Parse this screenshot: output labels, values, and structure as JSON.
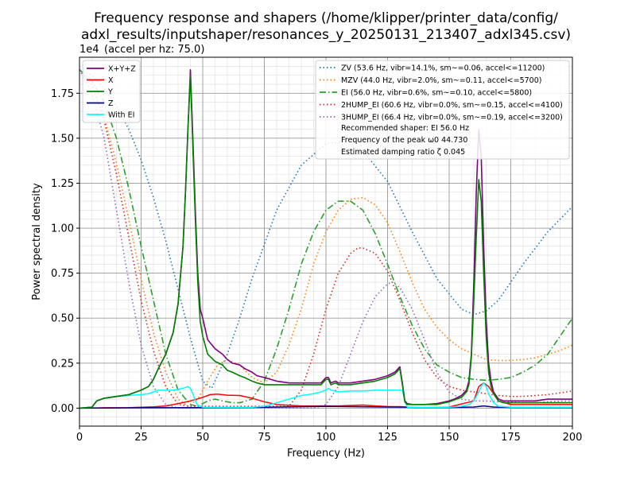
{
  "chart_data": {
    "type": "line",
    "title_lines": [
      "Frequency response and shapers (/home/klipper/printer_data/config/",
      "adxl_results/inputshaper/resonances_y_20250131_213407_adxl345.csv)"
    ],
    "xlabel": "Frequency (Hz)",
    "ylabel": "Power spectral density",
    "y_offset_label": "1e4",
    "annotation": "(accel per hz: 75.0)",
    "xlim": [
      0,
      200
    ],
    "ylim": [
      -0.1,
      1.95
    ],
    "x_ticks": [
      0,
      25,
      50,
      75,
      100,
      125,
      150,
      175,
      200
    ],
    "x_tick_labels": [
      "0",
      "25",
      "50",
      "75",
      "100",
      "125",
      "150",
      "175",
      "200"
    ],
    "y_ticks": [
      0,
      0.25,
      0.5,
      0.75,
      1.0,
      1.25,
      1.5,
      1.75
    ],
    "y_tick_labels": [
      "0.00",
      "0.25",
      "0.50",
      "0.75",
      "1.00",
      "1.25",
      "1.50",
      "1.75"
    ],
    "grid": true,
    "legend_left_position": "top-left",
    "legend_right_position": "top-right",
    "series": [
      {
        "name": "X+Y+Z",
        "color": "#800080",
        "style": "solid",
        "width": 1.6,
        "x": [
          0,
          5,
          7,
          10,
          15,
          20,
          25,
          28,
          30,
          32,
          35,
          38,
          40,
          42,
          43,
          44,
          45,
          46,
          47,
          48,
          49,
          50,
          52,
          55,
          58,
          60,
          62,
          65,
          67,
          70,
          72,
          75,
          80,
          85,
          90,
          95,
          98,
          100,
          101,
          102,
          104,
          105,
          110,
          115,
          120,
          125,
          128,
          130,
          131,
          132,
          133,
          135,
          140,
          145,
          150,
          152,
          155,
          157,
          158,
          159,
          160,
          161,
          162,
          163,
          164,
          165,
          166,
          167,
          168,
          169,
          170,
          172,
          175,
          180,
          185,
          190,
          195,
          200
        ],
        "y": [
          0,
          0.005,
          0.04,
          0.055,
          0.065,
          0.075,
          0.1,
          0.12,
          0.16,
          0.22,
          0.3,
          0.42,
          0.58,
          0.9,
          1.2,
          1.55,
          1.88,
          1.5,
          1.1,
          0.75,
          0.55,
          0.5,
          0.38,
          0.33,
          0.3,
          0.27,
          0.25,
          0.24,
          0.22,
          0.2,
          0.18,
          0.17,
          0.15,
          0.14,
          0.14,
          0.14,
          0.14,
          0.17,
          0.17,
          0.14,
          0.15,
          0.14,
          0.14,
          0.15,
          0.16,
          0.18,
          0.2,
          0.23,
          0.14,
          0.04,
          0.025,
          0.02,
          0.02,
          0.025,
          0.04,
          0.05,
          0.07,
          0.1,
          0.15,
          0.3,
          0.7,
          1.2,
          1.55,
          1.4,
          0.9,
          0.5,
          0.25,
          0.15,
          0.09,
          0.07,
          0.05,
          0.04,
          0.04,
          0.04,
          0.04,
          0.05,
          0.05,
          0.05
        ]
      },
      {
        "name": "X",
        "color": "#ff0000",
        "style": "solid",
        "width": 1.5,
        "x": [
          0,
          10,
          20,
          30,
          35,
          40,
          45,
          50,
          53,
          56,
          60,
          62,
          65,
          70,
          75,
          80,
          90,
          100,
          105,
          110,
          115,
          120,
          125,
          130,
          135,
          140,
          150,
          160,
          162,
          164,
          166,
          170,
          175,
          180,
          190,
          200
        ],
        "y": [
          0,
          0.002,
          0.003,
          0.007,
          0.012,
          0.025,
          0.04,
          0.06,
          0.075,
          0.078,
          0.072,
          0.071,
          0.07,
          0.055,
          0.035,
          0.02,
          0.012,
          0.012,
          0.012,
          0.015,
          0.017,
          0.012,
          0.009,
          0.008,
          0.004,
          0.004,
          0.006,
          0.04,
          0.12,
          0.14,
          0.12,
          0.04,
          0.02,
          0.02,
          0.02,
          0.02
        ]
      },
      {
        "name": "Y",
        "color": "#008000",
        "style": "solid",
        "width": 1.6,
        "x": [
          0,
          5,
          7,
          10,
          15,
          20,
          25,
          28,
          30,
          32,
          35,
          38,
          40,
          42,
          43,
          44,
          45,
          46,
          47,
          48,
          49,
          50,
          52,
          55,
          58,
          60,
          62,
          65,
          67,
          70,
          72,
          75,
          80,
          85,
          90,
          95,
          98,
          100,
          101,
          102,
          104,
          105,
          110,
          115,
          120,
          125,
          128,
          130,
          131,
          132,
          133,
          135,
          140,
          145,
          150,
          152,
          155,
          157,
          158,
          159,
          160,
          161,
          162,
          163,
          164,
          165,
          166,
          167,
          168,
          169,
          170,
          172,
          175,
          180,
          185,
          190,
          195,
          200
        ],
        "y": [
          0,
          0.005,
          0.04,
          0.055,
          0.065,
          0.075,
          0.1,
          0.12,
          0.16,
          0.22,
          0.3,
          0.42,
          0.58,
          0.9,
          1.2,
          1.55,
          1.85,
          1.45,
          1.05,
          0.7,
          0.48,
          0.4,
          0.3,
          0.26,
          0.24,
          0.21,
          0.2,
          0.18,
          0.17,
          0.15,
          0.14,
          0.13,
          0.13,
          0.13,
          0.13,
          0.13,
          0.13,
          0.16,
          0.16,
          0.13,
          0.14,
          0.13,
          0.13,
          0.14,
          0.15,
          0.17,
          0.19,
          0.22,
          0.13,
          0.035,
          0.02,
          0.02,
          0.02,
          0.02,
          0.035,
          0.045,
          0.06,
          0.09,
          0.13,
          0.28,
          0.6,
          0.95,
          1.27,
          1.15,
          0.75,
          0.4,
          0.2,
          0.12,
          0.08,
          0.06,
          0.04,
          0.03,
          0.03,
          0.03,
          0.03,
          0.03,
          0.03,
          0.03
        ]
      },
      {
        "name": "Z",
        "color": "#00008b",
        "style": "solid",
        "width": 1.5,
        "x": [
          0,
          25,
          50,
          75,
          100,
          125,
          150,
          160,
          164,
          168,
          175,
          200
        ],
        "y": [
          0,
          0.002,
          0.003,
          0.005,
          0.01,
          0.006,
          0.004,
          0.006,
          0.012,
          0.006,
          0.004,
          0.003
        ]
      },
      {
        "name": "With EI",
        "color": "#00ffff",
        "style": "solid",
        "width": 1.5,
        "x": [
          0,
          5,
          7,
          10,
          15,
          20,
          25,
          28,
          30,
          32,
          35,
          38,
          40,
          42,
          44,
          45,
          46,
          47,
          48,
          50,
          52,
          55,
          60,
          65,
          70,
          75,
          80,
          85,
          90,
          95,
          98,
          100,
          101,
          102,
          105,
          110,
          115,
          120,
          125,
          128,
          130,
          131,
          132,
          133,
          135,
          140,
          145,
          150,
          155,
          158,
          160,
          162,
          163,
          164,
          165,
          166,
          168,
          170,
          175,
          200
        ],
        "y": [
          0,
          0.005,
          0.04,
          0.055,
          0.065,
          0.07,
          0.075,
          0.08,
          0.09,
          0.1,
          0.1,
          0.1,
          0.105,
          0.11,
          0.12,
          0.11,
          0.08,
          0.04,
          0.015,
          0.005,
          0.005,
          0.005,
          0.005,
          0.005,
          0.005,
          0.01,
          0.03,
          0.05,
          0.07,
          0.08,
          0.09,
          0.1,
          0.11,
          0.1,
          0.09,
          0.095,
          0.095,
          0.1,
          0.1,
          0.1,
          0.1,
          0.1,
          0.04,
          0.005,
          0.005,
          0.005,
          0.005,
          0.005,
          0.01,
          0.02,
          0.04,
          0.09,
          0.12,
          0.14,
          0.12,
          0.08,
          0.03,
          0.01,
          0.005,
          0.005
        ]
      },
      {
        "name": "ZV (53.6 Hz, vibr=14.1%, sm~=0.06, accel<=11200)",
        "color": "#1f77b4",
        "style": "dotted",
        "width": 1.6,
        "x": [
          0,
          5,
          10,
          15,
          20,
          25,
          30,
          35,
          40,
          45,
          50,
          53.6,
          60,
          65,
          70,
          80,
          90,
          100,
          107,
          115,
          125,
          135,
          145,
          155,
          160,
          165,
          170,
          180,
          190,
          200
        ],
        "y": [
          1.88,
          1.85,
          1.78,
          1.68,
          1.55,
          1.38,
          1.17,
          0.93,
          0.66,
          0.39,
          0.15,
          0.11,
          0.3,
          0.5,
          0.72,
          1.1,
          1.35,
          1.47,
          1.48,
          1.43,
          1.26,
          0.98,
          0.72,
          0.55,
          0.52,
          0.54,
          0.6,
          0.8,
          0.98,
          1.12
        ]
      },
      {
        "name": "MZV (44.0 Hz, vibr=2.0%, sm~=0.11, accel<=5700)",
        "color": "#ff7f0e",
        "style": "dotted",
        "width": 1.6,
        "x": [
          0,
          5,
          10,
          15,
          20,
          25,
          30,
          35,
          40,
          44,
          48,
          52,
          56,
          60,
          65,
          70,
          75,
          80,
          85,
          90,
          95,
          100,
          105,
          110,
          115,
          120,
          125,
          130,
          135,
          140,
          145,
          150,
          155,
          160,
          165,
          170,
          175,
          180,
          185,
          190,
          195,
          200
        ],
        "y": [
          1.88,
          1.8,
          1.62,
          1.36,
          1.05,
          0.72,
          0.42,
          0.2,
          0.05,
          0.01,
          0.05,
          0.15,
          0.24,
          0.27,
          0.24,
          0.17,
          0.14,
          0.2,
          0.35,
          0.55,
          0.8,
          0.98,
          1.1,
          1.16,
          1.17,
          1.13,
          1.03,
          0.87,
          0.7,
          0.55,
          0.45,
          0.38,
          0.33,
          0.3,
          0.27,
          0.265,
          0.265,
          0.27,
          0.28,
          0.3,
          0.32,
          0.35
        ]
      },
      {
        "name": "EI (56.0 Hz, vibr=0.6%, sm~=0.10, accel<=5800)",
        "color": "#2ca02c",
        "style": "dashdot",
        "width": 1.6,
        "x": [
          0,
          5,
          10,
          15,
          20,
          25,
          30,
          35,
          40,
          45,
          48,
          52,
          55,
          58,
          62,
          65,
          70,
          75,
          80,
          85,
          90,
          95,
          100,
          105,
          110,
          115,
          120,
          125,
          130,
          135,
          140,
          145,
          150,
          155,
          160,
          165,
          170,
          175,
          180,
          185,
          190,
          195,
          200
        ],
        "y": [
          1.88,
          1.82,
          1.7,
          1.5,
          1.22,
          0.9,
          0.6,
          0.3,
          0.1,
          0.02,
          0.01,
          0.04,
          0.05,
          0.04,
          0.03,
          0.03,
          0.05,
          0.15,
          0.33,
          0.55,
          0.8,
          0.98,
          1.1,
          1.15,
          1.15,
          1.1,
          0.97,
          0.8,
          0.62,
          0.46,
          0.33,
          0.24,
          0.2,
          0.17,
          0.16,
          0.155,
          0.16,
          0.17,
          0.2,
          0.24,
          0.3,
          0.4,
          0.5
        ]
      },
      {
        "name": "2HUMP_EI (60.6 Hz, vibr=0.0%, sm~=0.15, accel<=4100)",
        "color": "#d62728",
        "style": "dotted",
        "width": 1.6,
        "x": [
          0,
          5,
          10,
          15,
          20,
          25,
          30,
          35,
          40,
          45,
          50,
          55,
          60,
          65,
          70,
          75,
          80,
          85,
          90,
          95,
          100,
          105,
          110,
          113,
          115,
          120,
          125,
          130,
          135,
          140,
          145,
          150,
          155,
          160,
          165,
          170,
          175,
          180,
          185,
          190,
          195,
          200
        ],
        "y": [
          1.88,
          1.8,
          1.6,
          1.3,
          0.95,
          0.6,
          0.32,
          0.12,
          0.02,
          0.01,
          0.01,
          0.01,
          0.01,
          0.01,
          0.01,
          0.01,
          0.01,
          0.01,
          0.1,
          0.3,
          0.55,
          0.75,
          0.86,
          0.89,
          0.89,
          0.86,
          0.76,
          0.6,
          0.42,
          0.27,
          0.17,
          0.12,
          0.1,
          0.09,
          0.08,
          0.07,
          0.065,
          0.065,
          0.07,
          0.075,
          0.085,
          0.095
        ]
      },
      {
        "name": "3HUMP_EI (66.4 Hz, vibr=0.0%, sm~=0.19, accel<=3200)",
        "color": "#9467bd",
        "style": "dotted",
        "width": 1.6,
        "x": [
          0,
          5,
          10,
          15,
          20,
          25,
          30,
          35,
          40,
          45,
          50,
          55,
          60,
          65,
          70,
          75,
          80,
          85,
          90,
          95,
          100,
          105,
          110,
          115,
          120,
          125,
          127,
          130,
          135,
          140,
          145,
          150,
          155,
          160,
          165,
          170,
          175,
          180,
          185,
          190,
          195,
          200
        ],
        "y": [
          1.88,
          1.75,
          1.5,
          1.1,
          0.7,
          0.35,
          0.12,
          0.02,
          0.0,
          0.0,
          0.0,
          0.0,
          0.0,
          0.0,
          0.0,
          0.0,
          0.0,
          0.0,
          0.0,
          0.0,
          0.02,
          0.12,
          0.3,
          0.48,
          0.62,
          0.69,
          0.7,
          0.67,
          0.55,
          0.38,
          0.2,
          0.09,
          0.05,
          0.04,
          0.04,
          0.035,
          0.035,
          0.03,
          0.03,
          0.035,
          0.04,
          0.04
        ]
      }
    ],
    "legend_right_extra": [
      "Recommended shaper: EI 56.0 Hz",
      "Frequency of the peak ω0 44.730",
      "Estimated damping ratio ζ 0.045"
    ]
  }
}
